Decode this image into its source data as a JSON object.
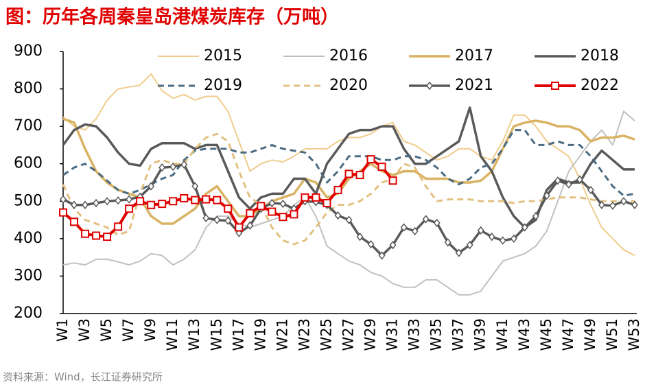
{
  "chart_data": {
    "type": "line",
    "title": "图：历年各周秦皇岛港煤炭库存（万吨）",
    "source": "资料来源：Wind，长江证券研究所",
    "categories": [
      "W1",
      null,
      "W3",
      null,
      "W5",
      null,
      "W7",
      null,
      "W9",
      null,
      "W11",
      null,
      "W13",
      null,
      "W15",
      null,
      "W17",
      null,
      "W19",
      null,
      "W21",
      null,
      "W23",
      null,
      "W25",
      null,
      "W27",
      null,
      "W29",
      null,
      "W31",
      null,
      "W33",
      null,
      "W35",
      null,
      "W37",
      null,
      "W39",
      null,
      "W41",
      null,
      "W43",
      null,
      "W45",
      null,
      "W47",
      null,
      "W49",
      null,
      "W51",
      null,
      "W53"
    ],
    "ylim": [
      200,
      900
    ],
    "yticks": [
      200,
      300,
      400,
      500,
      600,
      700,
      800,
      900
    ],
    "series": [
      {
        "name": "2015",
        "color": "#f0cc8c",
        "width": 2,
        "values": [
          725,
          700,
          690,
          720,
          770,
          800,
          805,
          810,
          840,
          795,
          775,
          785,
          770,
          780,
          780,
          740,
          660,
          580,
          600,
          610,
          605,
          620,
          640,
          640,
          640,
          660,
          670,
          670,
          680,
          700,
          710,
          660,
          650,
          630,
          610,
          620,
          640,
          640,
          620,
          610,
          660,
          730,
          730,
          700,
          660,
          640,
          620,
          560,
          490,
          430,
          400,
          370,
          355
        ]
      },
      {
        "name": "2016",
        "color": "#c0c0c0",
        "width": 2,
        "values": [
          330,
          335,
          330,
          345,
          345,
          338,
          330,
          340,
          360,
          355,
          330,
          345,
          370,
          430,
          460,
          460,
          440,
          430,
          440,
          450,
          460,
          490,
          510,
          460,
          380,
          360,
          340,
          330,
          310,
          300,
          280,
          270,
          270,
          290,
          290,
          270,
          250,
          250,
          260,
          300,
          340,
          350,
          360,
          380,
          420,
          500,
          580,
          620,
          660,
          690,
          650,
          740,
          715
        ]
      },
      {
        "name": "2017",
        "color": "#d9b263",
        "width": 3.5,
        "values": [
          720,
          710,
          640,
          580,
          550,
          530,
          520,
          510,
          460,
          440,
          440,
          460,
          480,
          520,
          540,
          500,
          460,
          460,
          480,
          500,
          510,
          520,
          560,
          550,
          510,
          520,
          560,
          580,
          600,
          580,
          570,
          580,
          580,
          560,
          560,
          560,
          550,
          550,
          555,
          580,
          640,
          700,
          710,
          715,
          710,
          700,
          700,
          690,
          660,
          670,
          670,
          675,
          665
        ]
      },
      {
        "name": "2018",
        "color": "#595959",
        "width": 3.5,
        "values": [
          650,
          690,
          705,
          700,
          670,
          630,
          600,
          595,
          640,
          655,
          655,
          655,
          640,
          650,
          650,
          580,
          510,
          480,
          510,
          520,
          520,
          560,
          560,
          520,
          600,
          640,
          680,
          690,
          690,
          700,
          700,
          640,
          600,
          600,
          620,
          640,
          660,
          750,
          620,
          580,
          510,
          460,
          430,
          450,
          530,
          560,
          550,
          550,
          600,
          635,
          610,
          585,
          585
        ]
      },
      {
        "name": "2019",
        "color": "#4b6b82",
        "width": 3,
        "dash": true,
        "values": [
          570,
          590,
          600,
          580,
          555,
          530,
          520,
          530,
          545,
          560,
          570,
          610,
          635,
          640,
          640,
          640,
          630,
          630,
          640,
          650,
          640,
          635,
          630,
          600,
          550,
          580,
          620,
          620,
          620,
          610,
          610,
          620,
          620,
          610,
          590,
          560,
          545,
          560,
          590,
          600,
          640,
          690,
          690,
          650,
          650,
          660,
          650,
          650,
          620,
          580,
          540,
          515,
          520
        ]
      },
      {
        "name": "2020",
        "color": "#e2c080",
        "width": 3,
        "dash": true,
        "values": [
          545,
          480,
          450,
          440,
          430,
          410,
          420,
          520,
          600,
          610,
          600,
          600,
          640,
          670,
          680,
          660,
          580,
          510,
          490,
          430,
          395,
          385,
          395,
          430,
          470,
          490,
          490,
          500,
          520,
          550,
          560,
          600,
          590,
          540,
          500,
          505,
          505,
          505,
          500,
          500,
          500,
          495,
          500,
          500,
          505,
          510,
          510,
          510,
          505,
          500,
          500,
          500,
          500
        ]
      },
      {
        "name": "2021",
        "color": "#595959",
        "width": 3.5,
        "marker": "diamond",
        "values": [
          505,
          490,
          490,
          495,
          500,
          502,
          505,
          512,
          540,
          590,
          592,
          598,
          540,
          455,
          450,
          448,
          415,
          435,
          480,
          495,
          493,
          480,
          500,
          498,
          490,
          462,
          450,
          405,
          385,
          355,
          383,
          430,
          420,
          452,
          442,
          390,
          362,
          383,
          422,
          405,
          395,
          400,
          430,
          460,
          515,
          555,
          545,
          558,
          530,
          490,
          488,
          500,
          490
        ]
      },
      {
        "name": "2022",
        "color": "#e00000",
        "width": 4,
        "marker": "square",
        "values": [
          470,
          445,
          413,
          408,
          405,
          432,
          480,
          500,
          490,
          493,
          500,
          508,
          503,
          505,
          503,
          480,
          430,
          468,
          487,
          472,
          458,
          465,
          510,
          510,
          495,
          530,
          573,
          570,
          612,
          592,
          555,
          null,
          null,
          null,
          null,
          null,
          null,
          null,
          null,
          null,
          null,
          null,
          null,
          null,
          null,
          null,
          null,
          null,
          null,
          null,
          null,
          null,
          null
        ]
      }
    ]
  }
}
